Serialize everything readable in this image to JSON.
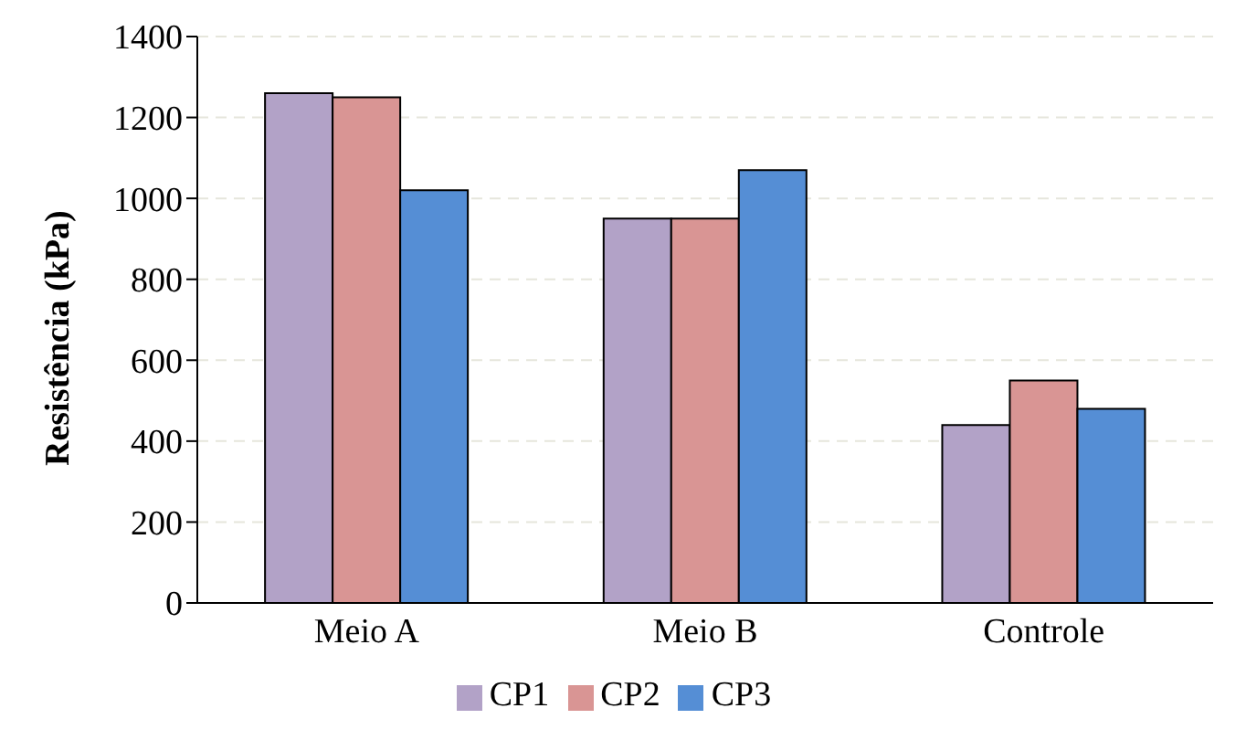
{
  "chart_data": {
    "type": "bar",
    "ylabel": "Resistência (kPa)",
    "categories": [
      "Meio A",
      "Meio B",
      "Controle"
    ],
    "series": [
      {
        "name": "CP1",
        "color": "#b2a2c7",
        "values": [
          1260,
          950,
          440
        ]
      },
      {
        "name": "CP2",
        "color": "#d99594",
        "values": [
          1250,
          950,
          550
        ]
      },
      {
        "name": "CP3",
        "color": "#558ed5",
        "values": [
          1020,
          1070,
          480
        ]
      }
    ],
    "ylim": [
      0,
      1400
    ],
    "yticks": [
      0,
      200,
      400,
      600,
      800,
      1000,
      1200,
      1400
    ],
    "grid": "y",
    "legend": "bottom"
  }
}
